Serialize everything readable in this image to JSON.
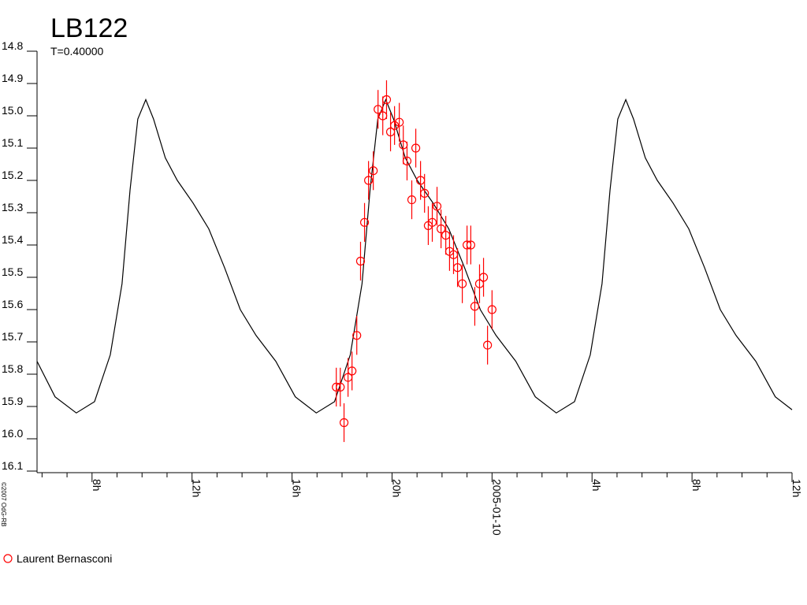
{
  "chart_data": {
    "type": "scatter",
    "title": "LB122",
    "subtitle": "T=0.40000",
    "copyright": "©2007 OdG-RB",
    "xlim": [
      5.8,
      36
    ],
    "ylim": [
      16.1,
      14.8
    ],
    "xticks": [
      {
        "value": 8,
        "label": "8h"
      },
      {
        "value": 12,
        "label": "12h"
      },
      {
        "value": 16,
        "label": "16h"
      },
      {
        "value": 20,
        "label": "20h"
      },
      {
        "value": 24,
        "label": "2005-01-10"
      },
      {
        "value": 28,
        "label": "4h"
      },
      {
        "value": 32,
        "label": "8h"
      },
      {
        "value": 36,
        "label": "12h"
      }
    ],
    "yticks": [
      14.8,
      14.9,
      {
        "value": 15,
        "label": "15.0"
      },
      15.1,
      15.2,
      15.3,
      15.4,
      15.5,
      15.6,
      15.7,
      15.8,
      15.9,
      {
        "value": 16,
        "label": "16.0"
      },
      16.1
    ],
    "series": [
      {
        "type": "line",
        "color": "#000000",
        "x": [
          5.8,
          6.52,
          7.37,
          8.1,
          8.73,
          9.2,
          9.52,
          9.83,
          10.15,
          10.46,
          10.93,
          11.41,
          12.04,
          12.67,
          13.3,
          13.93,
          14.56,
          15.35,
          16.13,
          16.97,
          17.7,
          18.33,
          18.8,
          19.12,
          19.43,
          19.75,
          20.06,
          20.53,
          21.01,
          21.64,
          22.27,
          22.9,
          23.53,
          24.16,
          24.95,
          25.73,
          26.57,
          27.3,
          27.93,
          28.4,
          28.72,
          29.03,
          29.35,
          29.66,
          30.13,
          30.61,
          31.24,
          31.87,
          32.5,
          33.13,
          33.76,
          34.55,
          35.33,
          36
        ],
        "values": [
          15.76,
          15.87,
          15.92,
          15.885,
          15.74,
          15.52,
          15.23,
          15.01,
          14.95,
          15.01,
          15.13,
          15.2,
          15.27,
          15.35,
          15.47,
          15.6,
          15.68,
          15.76,
          15.87,
          15.92,
          15.885,
          15.74,
          15.52,
          15.23,
          15.01,
          14.95,
          15.01,
          15.13,
          15.2,
          15.27,
          15.35,
          15.47,
          15.6,
          15.68,
          15.76,
          15.87,
          15.92,
          15.885,
          15.74,
          15.52,
          15.23,
          15.01,
          14.95,
          15.01,
          15.13,
          15.2,
          15.27,
          15.35,
          15.47,
          15.6,
          15.68,
          15.76,
          15.87,
          15.91
        ]
      },
      {
        "type": "scatter",
        "name": "Laurent Bernasconi",
        "color": "#ff0000",
        "x": [
          17.77,
          17.93,
          18.08,
          18.24,
          18.4,
          18.59,
          18.74,
          18.9,
          19.06,
          19.25,
          19.44,
          19.63,
          19.78,
          19.94,
          20.1,
          20.29,
          20.45,
          20.6,
          20.79,
          20.95,
          21.14,
          21.3,
          21.45,
          21.61,
          21.8,
          21.96,
          22.15,
          22.3,
          22.46,
          22.62,
          22.81,
          23.0,
          23.15,
          23.31,
          23.5,
          23.66,
          23.82,
          24.0
        ],
        "values": [
          15.84,
          15.84,
          15.95,
          15.81,
          15.79,
          15.68,
          15.45,
          15.33,
          15.2,
          15.17,
          14.98,
          15.0,
          14.95,
          15.05,
          15.03,
          15.02,
          15.09,
          15.14,
          15.26,
          15.1,
          15.2,
          15.24,
          15.34,
          15.33,
          15.28,
          15.35,
          15.37,
          15.42,
          15.43,
          15.47,
          15.52,
          15.4,
          15.4,
          15.59,
          15.52,
          15.5,
          15.71,
          15.6
        ],
        "errors": [
          0.06,
          0.06,
          0.06,
          0.06,
          0.06,
          0.06,
          0.06,
          0.06,
          0.06,
          0.06,
          0.06,
          0.06,
          0.06,
          0.06,
          0.06,
          0.06,
          0.06,
          0.06,
          0.06,
          0.06,
          0.06,
          0.06,
          0.06,
          0.06,
          0.06,
          0.06,
          0.06,
          0.06,
          0.06,
          0.06,
          0.06,
          0.06,
          0.06,
          0.06,
          0.06,
          0.06,
          0.06,
          0.06
        ]
      }
    ]
  }
}
